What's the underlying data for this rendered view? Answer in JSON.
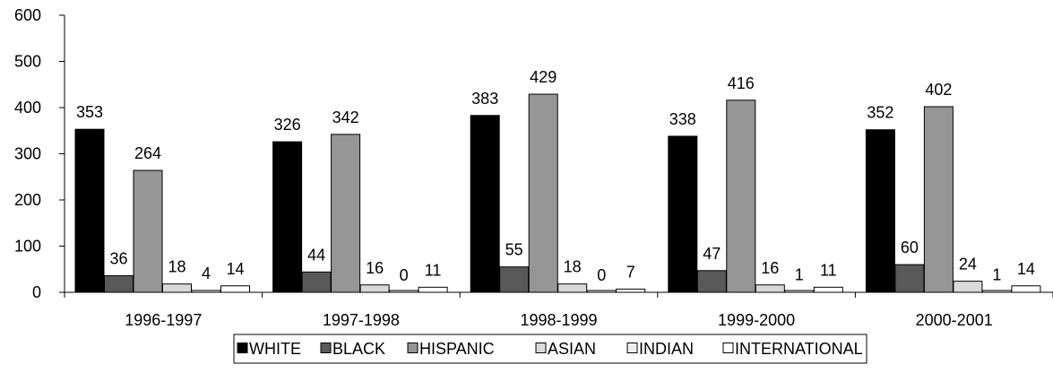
{
  "chart_data": {
    "type": "bar",
    "title": "",
    "xlabel": "",
    "ylabel": "",
    "ylim": [
      0,
      600
    ],
    "yticks": [
      0,
      100,
      200,
      300,
      400,
      500,
      600
    ],
    "grid": false,
    "legend_position": "bottom",
    "categories": [
      "1996-1997",
      "1997-1998",
      "1998-1999",
      "1999-2000",
      "2000-2001"
    ],
    "series": [
      {
        "name": "WHITE",
        "color": "#000000",
        "values": [
          353,
          326,
          383,
          338,
          352
        ]
      },
      {
        "name": "BLACK",
        "color": "#595959",
        "values": [
          36,
          44,
          55,
          47,
          60
        ]
      },
      {
        "name": "HISPANIC",
        "color": "#969696",
        "values": [
          264,
          342,
          429,
          416,
          402
        ]
      },
      {
        "name": "ASIAN",
        "color": "#d9d9d9",
        "values": [
          18,
          16,
          18,
          16,
          24
        ]
      },
      {
        "name": "INDIAN",
        "color": "#eeeeee",
        "values": [
          4,
          0,
          0,
          1,
          1
        ]
      },
      {
        "name": "INTERNATIONAL",
        "color": "#ffffff",
        "values": [
          14,
          11,
          7,
          11,
          14
        ]
      }
    ]
  }
}
